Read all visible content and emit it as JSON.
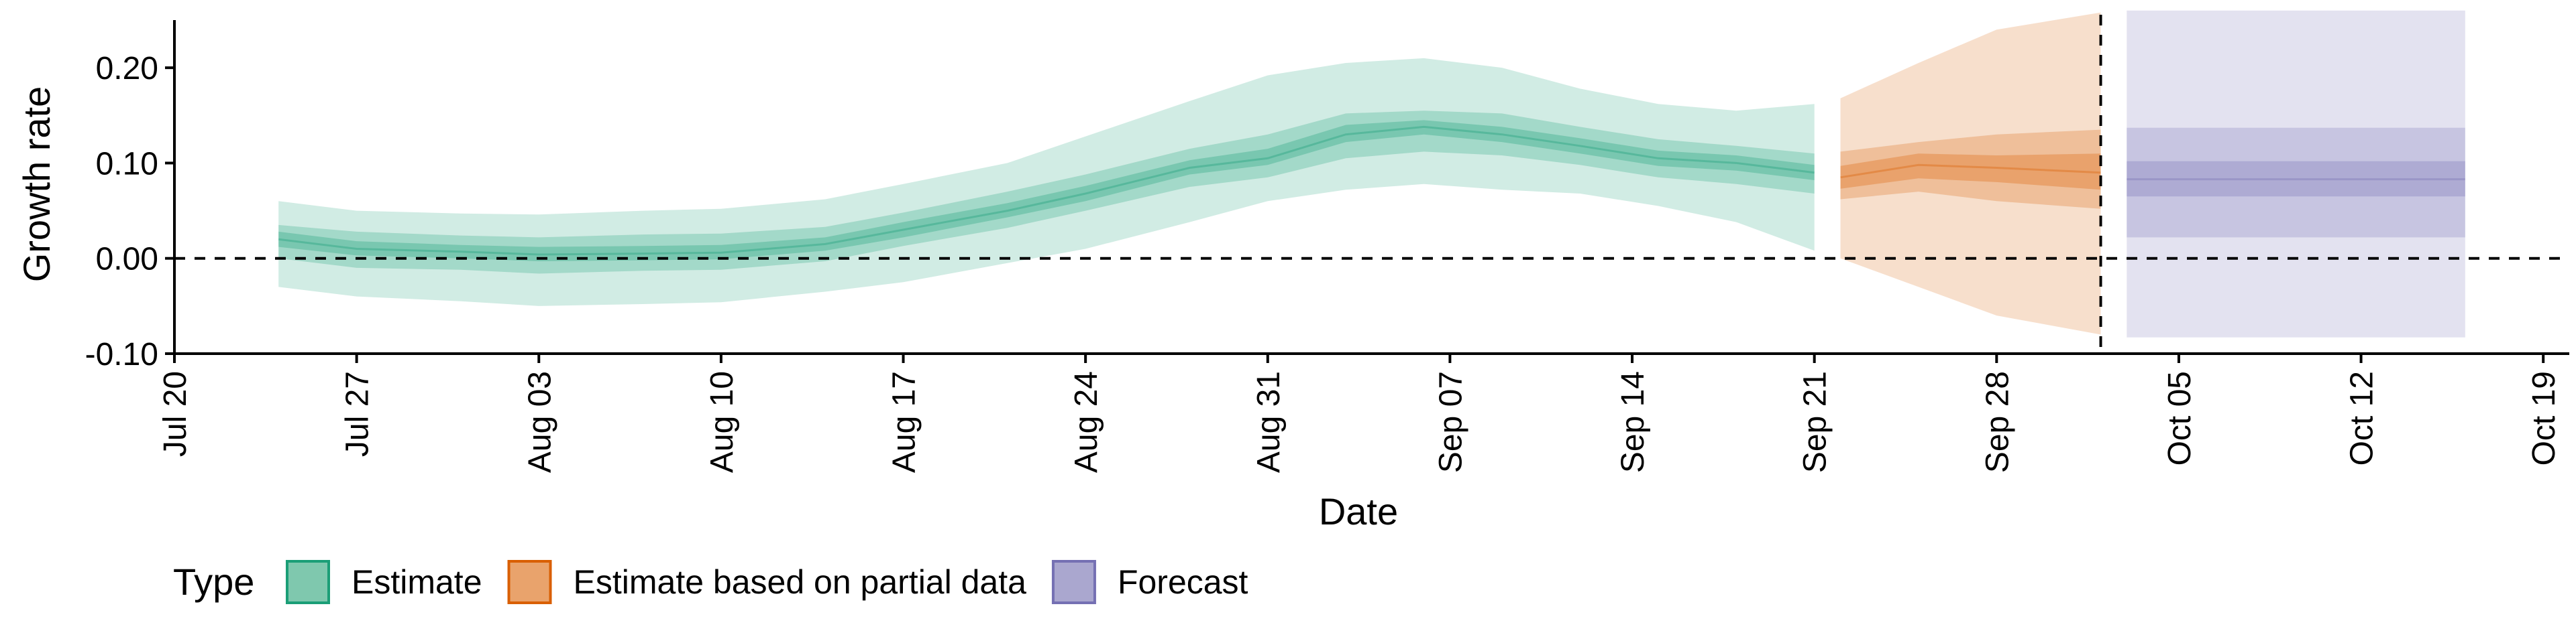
{
  "chart_data": {
    "type": "area",
    "xlabel": "Date",
    "ylabel": "Growth rate",
    "x_start": "2020-07-20",
    "x_end": "2020-10-20",
    "xlim": [
      "2020-07-20",
      "2020-10-20"
    ],
    "ylim": [
      -0.1,
      0.25
    ],
    "x_ticks": [
      {
        "date": "2020-07-20",
        "label": "Jul 20"
      },
      {
        "date": "2020-07-27",
        "label": "Jul 27"
      },
      {
        "date": "2020-08-03",
        "label": "Aug 03"
      },
      {
        "date": "2020-08-10",
        "label": "Aug 10"
      },
      {
        "date": "2020-08-17",
        "label": "Aug 17"
      },
      {
        "date": "2020-08-24",
        "label": "Aug 24"
      },
      {
        "date": "2020-08-31",
        "label": "Aug 31"
      },
      {
        "date": "2020-09-07",
        "label": "Sep 07"
      },
      {
        "date": "2020-09-14",
        "label": "Sep 14"
      },
      {
        "date": "2020-09-21",
        "label": "Sep 21"
      },
      {
        "date": "2020-09-28",
        "label": "Sep 28"
      },
      {
        "date": "2020-10-05",
        "label": "Oct 05"
      },
      {
        "date": "2020-10-12",
        "label": "Oct 12"
      },
      {
        "date": "2020-10-19",
        "label": "Oct 19"
      }
    ],
    "y_ticks": [
      {
        "value": -0.1,
        "label": "-0.10"
      },
      {
        "value": 0.0,
        "label": "0.00"
      },
      {
        "value": 0.1,
        "label": "0.10"
      },
      {
        "value": 0.2,
        "label": "0.20"
      }
    ],
    "reference_lines": {
      "horizontal_y": 0.0,
      "vertical_date": "2020-10-02",
      "style": "dashed"
    },
    "legend": {
      "title": "Type",
      "position": "bottom",
      "items": [
        {
          "label": "Estimate",
          "fill": "#7fc8ae",
          "stroke": "#1b9e77"
        },
        {
          "label": "Estimate based on partial data",
          "fill": "#e9a36c",
          "stroke": "#d95f02"
        },
        {
          "label": "Forecast",
          "fill": "#aaa7cf",
          "stroke": "#7570b3"
        }
      ]
    },
    "series": [
      {
        "name": "Estimate",
        "color": "#1b9e77",
        "points": [
          [
            "2020-07-24",
            0.02,
            -0.03,
            0.06,
            0.0,
            0.035,
            0.012,
            0.028
          ],
          [
            "2020-07-27",
            0.01,
            -0.04,
            0.05,
            -0.01,
            0.028,
            0.003,
            0.018
          ],
          [
            "2020-07-31",
            0.007,
            -0.045,
            0.047,
            -0.012,
            0.024,
            0.0,
            0.014
          ],
          [
            "2020-08-03",
            0.004,
            -0.05,
            0.046,
            -0.016,
            0.022,
            -0.003,
            0.012
          ],
          [
            "2020-08-07",
            0.005,
            -0.048,
            0.05,
            -0.013,
            0.025,
            -0.002,
            0.013
          ],
          [
            "2020-08-10",
            0.006,
            -0.046,
            0.052,
            -0.012,
            0.026,
            -0.001,
            0.014
          ],
          [
            "2020-08-14",
            0.015,
            -0.035,
            0.062,
            -0.003,
            0.033,
            0.008,
            0.022
          ],
          [
            "2020-08-17",
            0.03,
            -0.025,
            0.078,
            0.013,
            0.048,
            0.022,
            0.038
          ],
          [
            "2020-08-21",
            0.05,
            -0.005,
            0.1,
            0.032,
            0.07,
            0.043,
            0.058
          ],
          [
            "2020-08-24",
            0.068,
            0.01,
            0.128,
            0.05,
            0.088,
            0.06,
            0.076
          ],
          [
            "2020-08-28",
            0.095,
            0.038,
            0.165,
            0.075,
            0.115,
            0.088,
            0.103
          ],
          [
            "2020-08-31",
            0.105,
            0.06,
            0.192,
            0.085,
            0.13,
            0.098,
            0.115
          ],
          [
            "2020-09-03",
            0.13,
            0.072,
            0.205,
            0.105,
            0.152,
            0.122,
            0.14
          ],
          [
            "2020-09-06",
            0.138,
            0.078,
            0.21,
            0.112,
            0.155,
            0.13,
            0.145
          ],
          [
            "2020-09-09",
            0.13,
            0.072,
            0.2,
            0.108,
            0.152,
            0.122,
            0.138
          ],
          [
            "2020-09-12",
            0.118,
            0.068,
            0.178,
            0.098,
            0.138,
            0.11,
            0.126
          ],
          [
            "2020-09-15",
            0.105,
            0.055,
            0.162,
            0.085,
            0.125,
            0.097,
            0.113
          ],
          [
            "2020-09-18",
            0.1,
            0.038,
            0.155,
            0.078,
            0.118,
            0.092,
            0.108
          ],
          [
            "2020-09-21",
            0.09,
            0.008,
            0.162,
            0.068,
            0.11,
            0.082,
            0.098
          ]
        ]
      },
      {
        "name": "Estimate based on partial data",
        "color": "#d95f02",
        "points": [
          [
            "2020-09-22",
            0.085,
            0.0,
            0.168,
            0.062,
            0.112,
            0.073,
            0.097
          ],
          [
            "2020-09-25",
            0.098,
            -0.03,
            0.205,
            0.07,
            0.122,
            0.084,
            0.11
          ],
          [
            "2020-09-28",
            0.095,
            -0.06,
            0.24,
            0.06,
            0.13,
            0.08,
            0.108
          ],
          [
            "2020-10-02",
            0.09,
            -0.08,
            0.258,
            0.052,
            0.135,
            0.072,
            0.11
          ]
        ]
      },
      {
        "name": "Forecast",
        "color": "#7570b3",
        "points": [
          [
            "2020-10-03",
            0.083,
            -0.083,
            0.26,
            0.022,
            0.137,
            0.065,
            0.102
          ],
          [
            "2020-10-16",
            0.083,
            -0.083,
            0.26,
            0.022,
            0.137,
            0.065,
            0.102
          ]
        ]
      }
    ]
  }
}
